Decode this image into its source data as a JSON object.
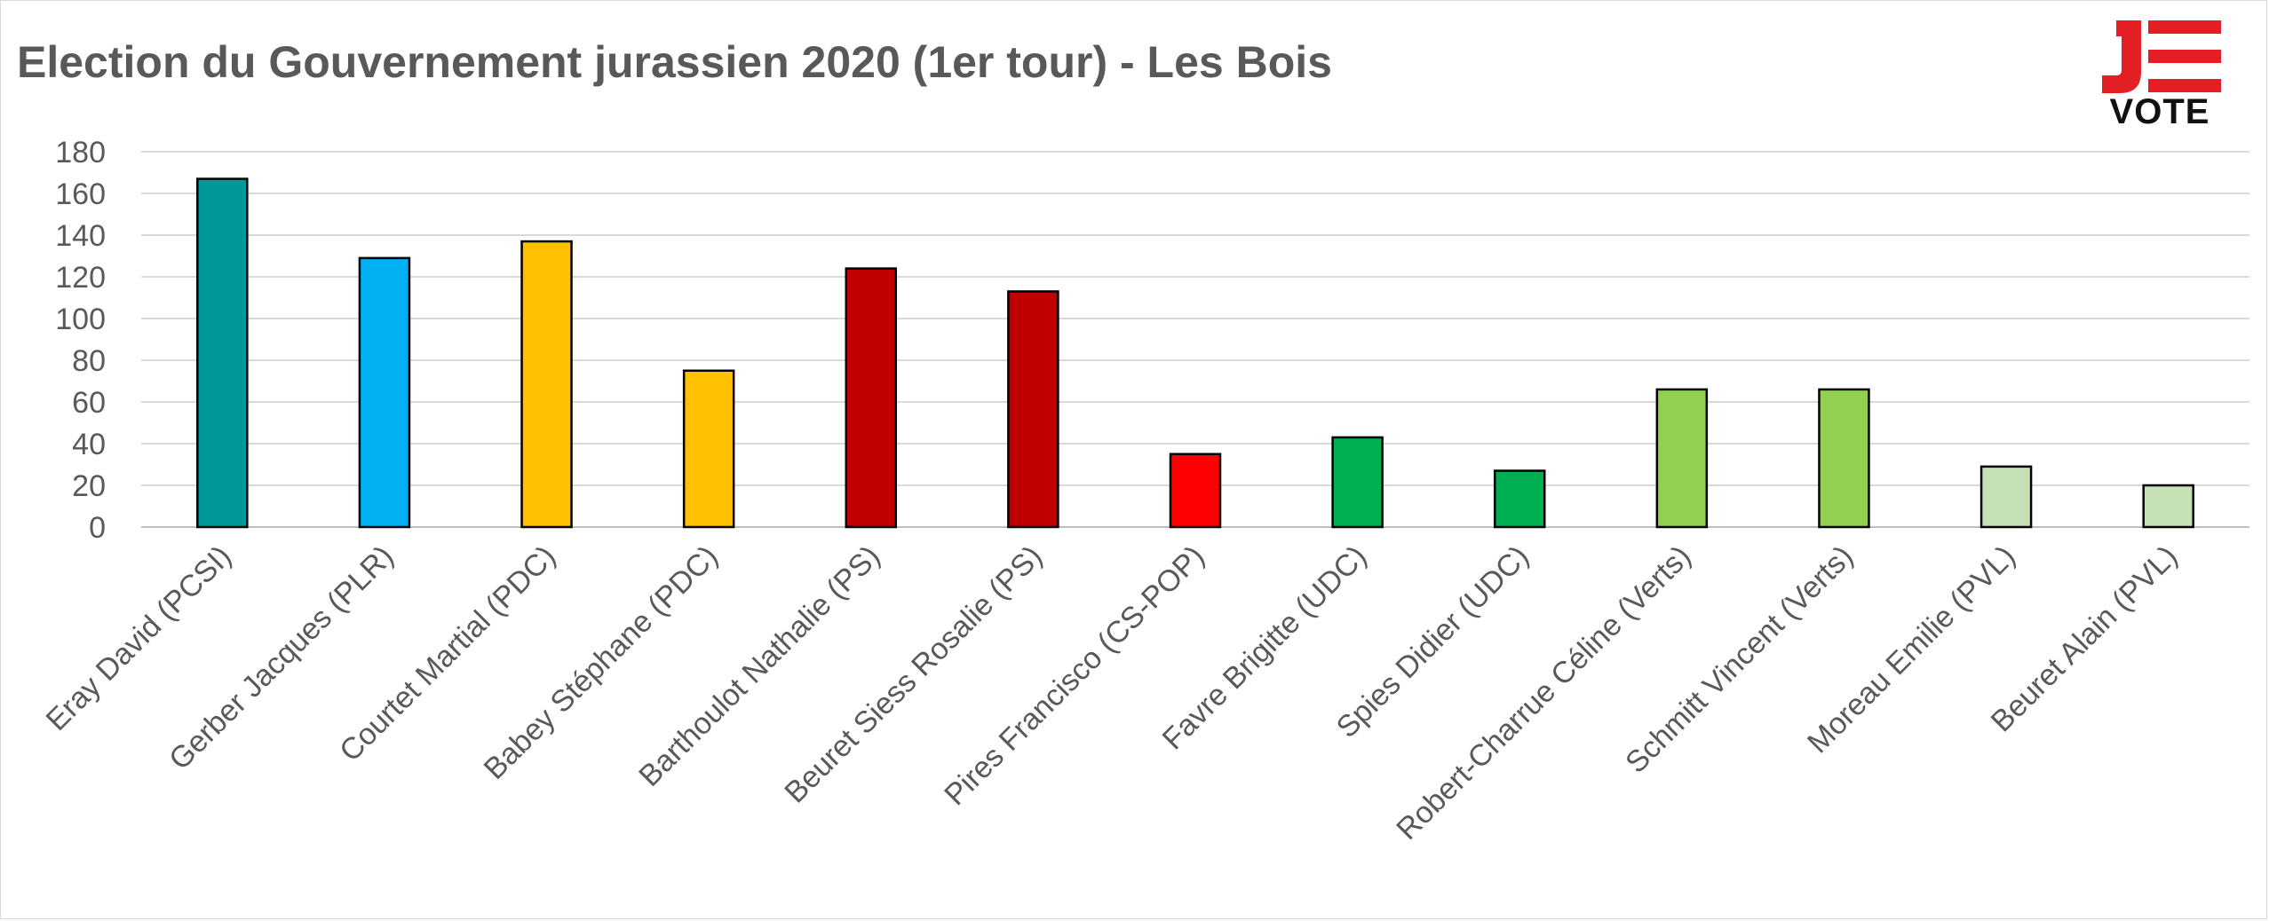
{
  "chart_data": {
    "type": "bar",
    "title": "Election du Gouvernement jurassien 2020 (1er tour) - Les Bois",
    "xlabel": "",
    "ylabel": "",
    "ylim": [
      0,
      180
    ],
    "yticks": [
      0,
      20,
      40,
      60,
      80,
      100,
      120,
      140,
      160,
      180
    ],
    "grid": true,
    "legend": "none",
    "categories": [
      "Eray David (PCSI)",
      "Gerber Jacques (PLR)",
      "Courtet Martial (PDC)",
      "Babey Stéphane (PDC)",
      "Barthoulot Nathalie (PS)",
      "Beuret Siess Rosalie (PS)",
      "Pires Francisco (CS-POP)",
      "Favre Brigitte (UDC)",
      "Spies Didier (UDC)",
      "Robert-Charrue Céline (Verts)",
      "Schmitt Vincent (Verts)",
      "Moreau Emilie (PVL)",
      "Beuret Alain (PVL)"
    ],
    "values": [
      167,
      129,
      137,
      75,
      124,
      113,
      35,
      43,
      27,
      66,
      66,
      29,
      20
    ],
    "colors": [
      "#009999",
      "#00b0f0",
      "#ffc000",
      "#ffc000",
      "#c00000",
      "#c00000",
      "#ff0000",
      "#00b050",
      "#00b050",
      "#92d050",
      "#92d050",
      "#c5e0b4",
      "#c5e0b4"
    ]
  },
  "logo": {
    "text": "VOTE",
    "mark_text": "JE",
    "mark_color": "#e31e24",
    "text_color": "#111111"
  }
}
